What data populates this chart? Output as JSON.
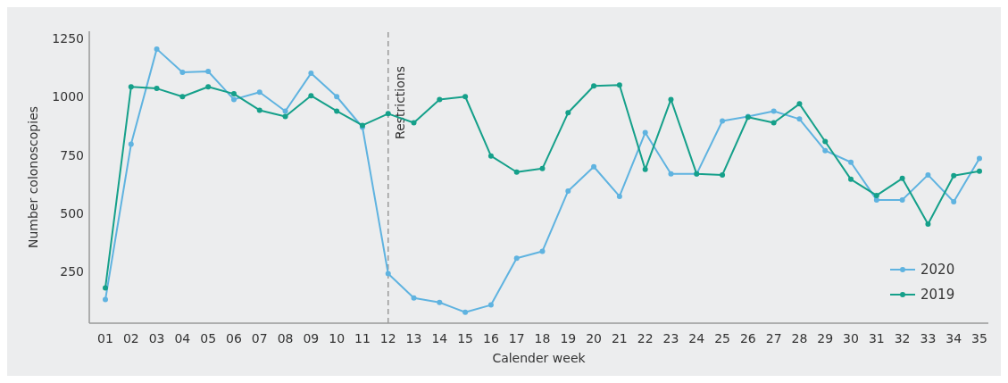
{
  "chart_data": {
    "type": "line",
    "xlabel": "Calender week",
    "ylabel": "Number colonoscopies",
    "categories": [
      "01",
      "02",
      "03",
      "04",
      "05",
      "06",
      "07",
      "08",
      "09",
      "10",
      "11",
      "12",
      "13",
      "14",
      "15",
      "16",
      "17",
      "18",
      "19",
      "20",
      "21",
      "22",
      "23",
      "24",
      "25",
      "26",
      "27",
      "28",
      "29",
      "30",
      "31",
      "32",
      "33",
      "34",
      "35"
    ],
    "series": [
      {
        "name": "2020",
        "color": "#5fb3e0",
        "values": [
          131,
          796,
          1204,
          1104,
          1108,
          988,
          1019,
          938,
          1100,
          1000,
          869,
          242,
          138,
          119,
          77,
          108,
          308,
          338,
          596,
          700,
          573,
          846,
          669,
          669,
          896,
          915,
          938,
          904,
          769,
          719,
          558,
          558,
          665,
          550,
          735
        ]
      },
      {
        "name": "2019",
        "color": "#15a08a",
        "values": [
          181,
          1042,
          1035,
          1000,
          1042,
          1012,
          942,
          915,
          1004,
          938,
          877,
          927,
          888,
          988,
          1000,
          746,
          677,
          692,
          931,
          1046,
          1050,
          688,
          988,
          669,
          665,
          912,
          888,
          969,
          808,
          646,
          577,
          650,
          454,
          662,
          681
        ]
      }
    ],
    "ylim": [
      30,
      1280
    ],
    "yticks": [
      250,
      500,
      750,
      1000,
      1250
    ],
    "ref_lines": [
      {
        "axis": "x",
        "value": "12",
        "label": "Restrictions",
        "color": "#9a9a9a",
        "line_style": "dashed"
      }
    ],
    "legend": "bottom right",
    "marker": "circle",
    "line_style": "solid",
    "grid": false
  }
}
